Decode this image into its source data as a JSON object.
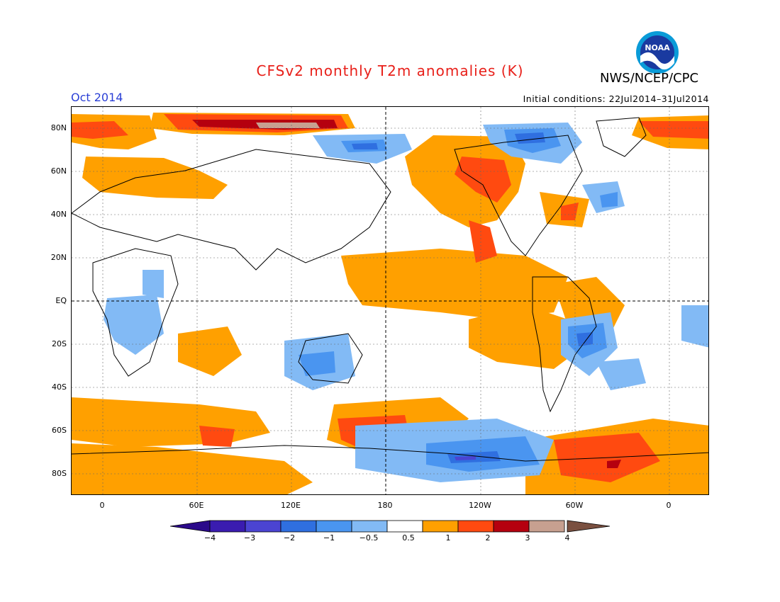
{
  "title": "CFSv2 monthly T2m anomalies (K)",
  "org": "NWS/NCEP/CPC",
  "logo_text": "NOAA",
  "month": "Oct 2014",
  "initial_conditions": "Initial conditions: 22Jul2014–31Jul2014",
  "lat_labels": [
    "80N",
    "60N",
    "40N",
    "20N",
    "EQ",
    "20S",
    "40S",
    "60S",
    "80S"
  ],
  "lon_labels": [
    "0",
    "60E",
    "120E",
    "180",
    "120W",
    "60W",
    "0"
  ],
  "colorbar": {
    "labels": [
      "−4",
      "−3",
      "−2",
      "−1",
      "−0.5",
      "0.5",
      "1",
      "2",
      "3",
      "4"
    ],
    "colors": [
      "#3a1cb0",
      "#4b44d2",
      "#2f6fe0",
      "#4a95f0",
      "#82baf5",
      "#ffffff",
      "#ffa000",
      "#ff4a10",
      "#b5000f",
      "#c7a090"
    ],
    "end_low": "#2b0a8a",
    "end_high": "#7a5040"
  },
  "colors": {
    "title": "#e8201a",
    "month": "#2a3fd6",
    "warm1": "#ffa000",
    "warm2": "#ff4a10",
    "warm3": "#b5000f",
    "warm4": "#c7a090",
    "cool1": "#82baf5",
    "cool2": "#4a95f0",
    "cool3": "#2f6fe0",
    "cool4": "#4b44d2"
  }
}
